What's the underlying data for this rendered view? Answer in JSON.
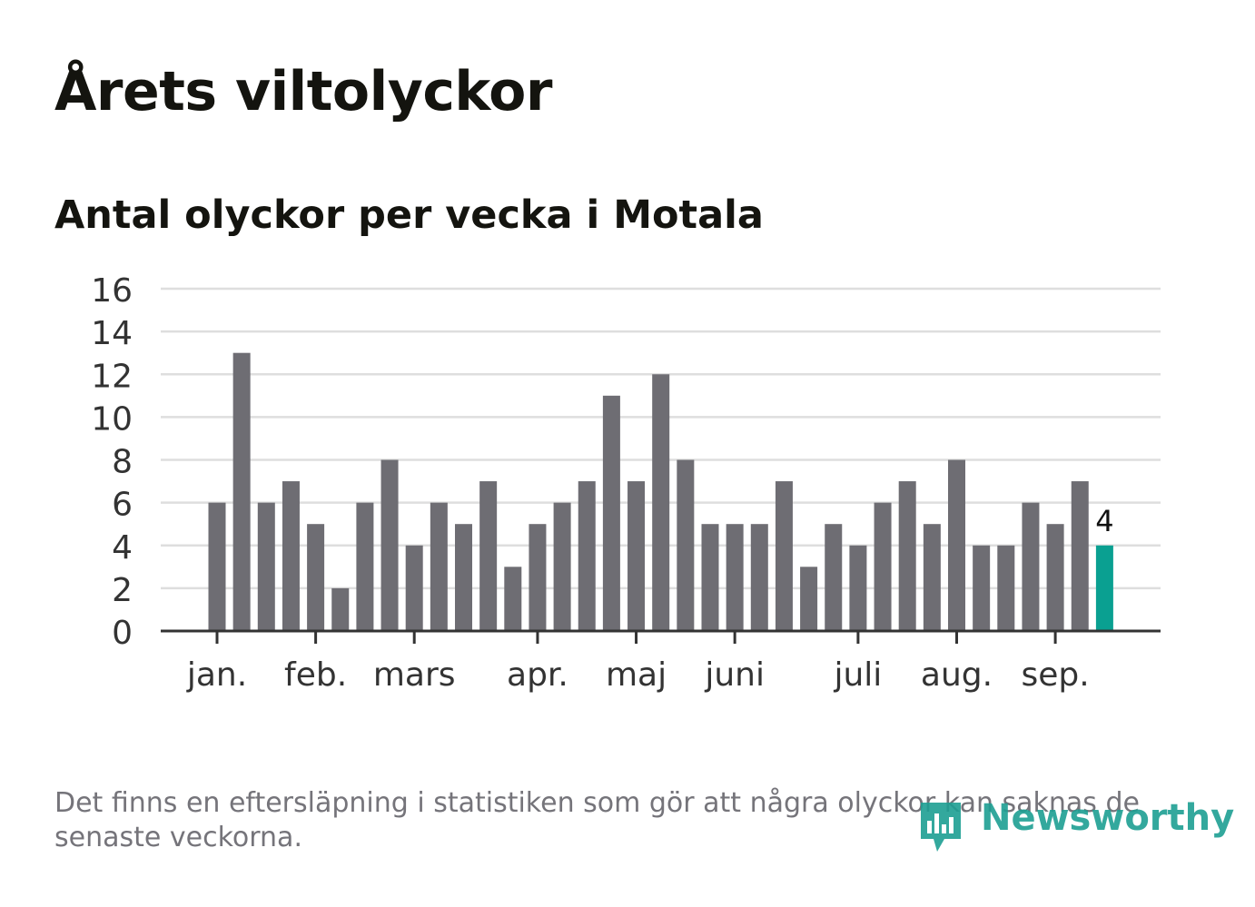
{
  "title": "Årets viltolyckor",
  "subtitle": "Antal olyckor per vecka i Motala",
  "note": "Det finns en eftersläpning i statistiken som gör att några olyckor kan saknas de senaste veckorna.",
  "brand": {
    "name": "Newsworthy",
    "color": "#1e9f93"
  },
  "colors": {
    "bar": "#6e6d73",
    "highlight": "#0aa091",
    "grid": "#dedede",
    "axis": "#333333",
    "text": "#333333"
  },
  "chart_data": {
    "type": "bar",
    "ylim": [
      0,
      16
    ],
    "yticks": [
      0,
      2,
      4,
      6,
      8,
      10,
      12,
      14,
      16
    ],
    "grid": true,
    "values": [
      6,
      13,
      6,
      7,
      5,
      2,
      6,
      8,
      4,
      6,
      5,
      7,
      3,
      5,
      6,
      7,
      11,
      7,
      12,
      8,
      5,
      5,
      5,
      7,
      3,
      5,
      4,
      6,
      7,
      5,
      8,
      4,
      4,
      6,
      5,
      7,
      4
    ],
    "months": [
      {
        "label": "jan.",
        "position": 0.5
      },
      {
        "label": "feb.",
        "position": 4.5
      },
      {
        "label": "mars",
        "position": 8.5
      },
      {
        "label": "apr.",
        "position": 13.5
      },
      {
        "label": "maj",
        "position": 17.5
      },
      {
        "label": "juni",
        "position": 21.5
      },
      {
        "label": "juli",
        "position": 26.5
      },
      {
        "label": "aug.",
        "position": 30.5
      },
      {
        "label": "sep.",
        "position": 34.5
      }
    ],
    "highlight_index": 36,
    "highlight_label": "4"
  }
}
